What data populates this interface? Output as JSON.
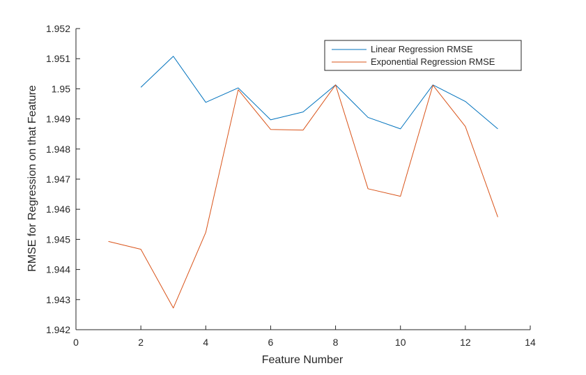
{
  "chart_data": {
    "type": "line",
    "title": "",
    "xlabel": "Feature Number",
    "ylabel": "RMSE for Regression on that Feature",
    "xlim": [
      0,
      14
    ],
    "ylim": [
      1.942,
      1.952
    ],
    "xticks": [
      0,
      2,
      4,
      6,
      8,
      10,
      12,
      14
    ],
    "xtick_labels": [
      "0",
      "2",
      "4",
      "6",
      "8",
      "10",
      "12",
      "14"
    ],
    "yticks": [
      1.942,
      1.943,
      1.944,
      1.945,
      1.946,
      1.947,
      1.948,
      1.949,
      1.95,
      1.951,
      1.952
    ],
    "ytick_labels": [
      "1.942",
      "1.943",
      "1.944",
      "1.945",
      "1.946",
      "1.947",
      "1.948",
      "1.949",
      "1.95",
      "1.951",
      "1.952"
    ],
    "grid": false,
    "legend_position": "top-right",
    "series": [
      {
        "name": "Linear Regression RMSE",
        "color": "#0072BD",
        "x": [
          2,
          3,
          4,
          5,
          6,
          7,
          8,
          9,
          10,
          11,
          12,
          13
        ],
        "y": [
          1.95005,
          1.95108,
          1.94955,
          1.95003,
          1.94897,
          1.94923,
          1.95013,
          1.94905,
          1.94867,
          1.95013,
          1.94958,
          1.94867
        ]
      },
      {
        "name": "Exponential Regression RMSE",
        "color": "#D95319",
        "x": [
          1,
          2,
          3,
          4,
          5,
          6,
          7,
          8,
          9,
          10,
          11,
          12,
          13
        ],
        "y": [
          1.94493,
          1.94467,
          1.94272,
          1.94523,
          1.94997,
          1.94865,
          1.94863,
          1.95013,
          1.94668,
          1.94643,
          1.95012,
          1.94875,
          1.94574
        ]
      }
    ]
  }
}
